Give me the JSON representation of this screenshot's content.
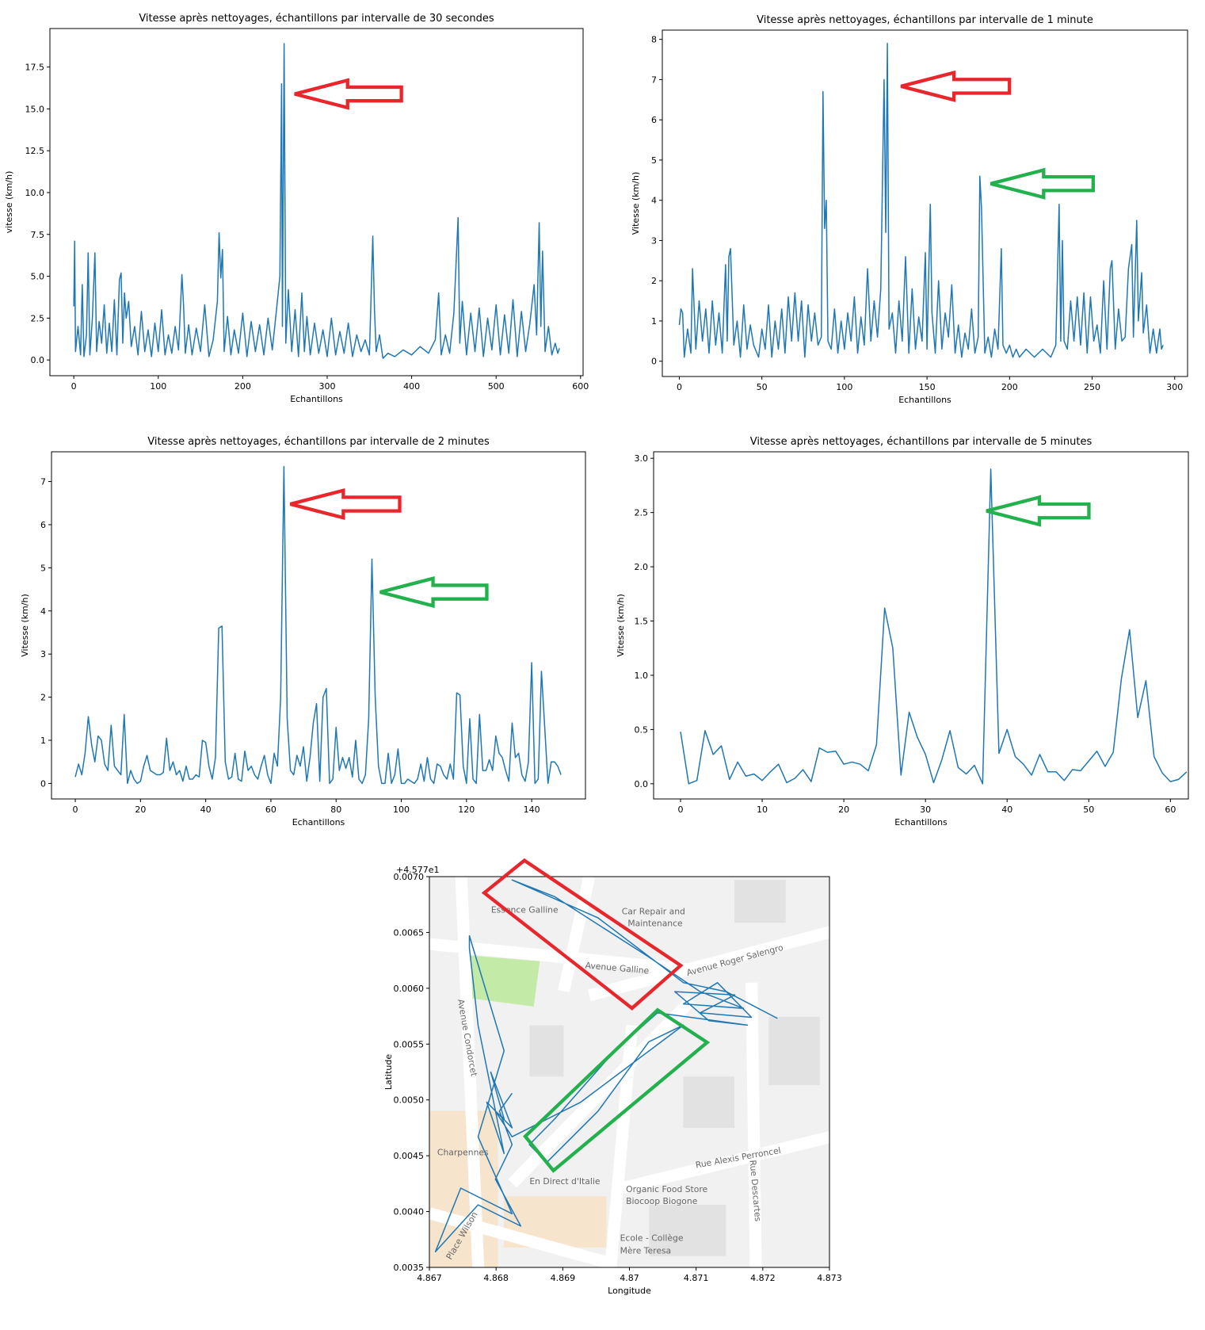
{
  "chart_data": [
    {
      "type": "line",
      "title": "Vitesse après nettoyages, échantillons par intervalle de 30 secondes",
      "xlabel": "Echantillons",
      "ylabel": "vitesse (km/h)",
      "color": "#1f77b4",
      "x": [
        0,
        1,
        2,
        5,
        8,
        10,
        12,
        15,
        17,
        19,
        22,
        25,
        27,
        30,
        33,
        36,
        39,
        42,
        45,
        48,
        51,
        54,
        56,
        58,
        60,
        62,
        65,
        68,
        72,
        76,
        80,
        84,
        88,
        92,
        96,
        100,
        104,
        108,
        112,
        116,
        120,
        124,
        128,
        130,
        132,
        136,
        140,
        145,
        150,
        155,
        160,
        165,
        170,
        172,
        174,
        176,
        178,
        182,
        186,
        190,
        195,
        200,
        205,
        210,
        215,
        220,
        225,
        230,
        235,
        240,
        244,
        246,
        247,
        249,
        251,
        254,
        258,
        262,
        266,
        270,
        273,
        276,
        280,
        285,
        290,
        295,
        300,
        305,
        310,
        315,
        320,
        325,
        330,
        335,
        340,
        345,
        350,
        354,
        356,
        358,
        362,
        366,
        372,
        380,
        390,
        400,
        410,
        420,
        428,
        432,
        435,
        440,
        445,
        450,
        455,
        457,
        460,
        465,
        470,
        475,
        480,
        485,
        490,
        495,
        500,
        505,
        510,
        515,
        520,
        525,
        530,
        535,
        540,
        545,
        548,
        551,
        553,
        555,
        558,
        562,
        566,
        570,
        573,
        575
      ],
      "values": [
        3.2,
        7.1,
        0.5,
        2,
        0.3,
        4.5,
        0.2,
        1.5,
        6.4,
        0.3,
        2.5,
        6.4,
        0.5,
        2.3,
        1,
        3.3,
        0.4,
        2.2,
        0.5,
        3.6,
        0.3,
        4.8,
        5.2,
        1,
        4,
        2.5,
        3.5,
        0.8,
        2,
        0.3,
        2.9,
        0.5,
        1.8,
        0.2,
        2.2,
        0.5,
        3,
        0.3,
        1.5,
        0.4,
        2,
        0.6,
        5.1,
        3.2,
        0.4,
        2.1,
        0.3,
        1.9,
        0.5,
        3.3,
        0.2,
        1.2,
        3.5,
        7.6,
        4.9,
        6.6,
        0.5,
        2.6,
        0.3,
        1.8,
        0.4,
        2.8,
        0.2,
        2.3,
        0.5,
        2.1,
        0.3,
        2.5,
        0.6,
        3,
        5,
        16.5,
        2,
        18.9,
        1,
        4.2,
        0.5,
        3,
        0.2,
        4,
        0.5,
        2.6,
        0.3,
        2.2,
        0.4,
        1.8,
        0.2,
        2.5,
        0.3,
        1.7,
        0.4,
        2.2,
        0.2,
        1.5,
        0.5,
        1.2,
        0.3,
        7.4,
        3,
        0.5,
        1.5,
        0.1,
        0.4,
        0.2,
        0.6,
        0.3,
        0.8,
        0.4,
        1.2,
        4,
        0.3,
        1.5,
        0.4,
        2.8,
        8.5,
        1,
        3.5,
        0.3,
        2.8,
        0.5,
        3.1,
        0.2,
        2.5,
        0.6,
        3.3,
        0.3,
        2.7,
        0.4,
        3.6,
        0.2,
        2.9,
        0.5,
        2.2,
        4.5,
        1.5,
        8.2,
        2,
        6.5,
        0.5,
        2,
        0.3,
        1,
        0.4,
        0.7
      ],
      "xlim": [
        -28.3,
        603
      ],
      "xticks": [
        0,
        100,
        200,
        300,
        400,
        500,
        600
      ],
      "ylim": [
        -0.94,
        19.8
      ],
      "yticks": [
        {
          "value": 0,
          "label": "0.0"
        },
        2.5,
        {
          "value": 5,
          "label": "5.0"
        },
        7.5,
        {
          "value": 10,
          "label": "10.0"
        },
        12.5,
        {
          "value": 15,
          "label": "15.0"
        },
        17.5
      ]
    },
    {
      "type": "line",
      "title": "Vitesse après nettoyages, échantillons par intervalle de 1 minute",
      "xlabel": "Echantillons",
      "ylabel": "Vitesse (km/h)",
      "color": "#1f77b4",
      "x": [
        0,
        1,
        2,
        3,
        5,
        7,
        8,
        10,
        12,
        14,
        16,
        18,
        20,
        22,
        24,
        26,
        28,
        29,
        30,
        31,
        33,
        35,
        37,
        39,
        41,
        43,
        45,
        48,
        50,
        52,
        54,
        56,
        58,
        60,
        62,
        64,
        66,
        68,
        70,
        72,
        74,
        76,
        78,
        80,
        82,
        84,
        86,
        87,
        88,
        89,
        90,
        92,
        94,
        96,
        98,
        100,
        102,
        104,
        106,
        108,
        110,
        112,
        114,
        116,
        118,
        120,
        122,
        124,
        125,
        126,
        127,
        129,
        131,
        133,
        135,
        137,
        139,
        141,
        143,
        145,
        147,
        149,
        150,
        152,
        153,
        155,
        157,
        159,
        161,
        163,
        165,
        167,
        169,
        171,
        173,
        175,
        177,
        179,
        181,
        182,
        183,
        185,
        187,
        189,
        191,
        193,
        195,
        196,
        198,
        200,
        202,
        204,
        206,
        210,
        215,
        220,
        225,
        228,
        230,
        231,
        232,
        233,
        235,
        237,
        239,
        241,
        243,
        245,
        247,
        249,
        251,
        253,
        255,
        257,
        259,
        261,
        262,
        264,
        266,
        268,
        270,
        272,
        274,
        275,
        277,
        278,
        280,
        281,
        283,
        285,
        287,
        289,
        291,
        292,
        293
      ],
      "values": [
        0.9,
        1.3,
        1.2,
        0.1,
        0.8,
        0.2,
        2.3,
        0.3,
        1.5,
        0.5,
        1.3,
        0.2,
        1.5,
        0.4,
        1.2,
        0.2,
        2.4,
        0.5,
        2.6,
        2.8,
        0.4,
        1,
        0.1,
        1.4,
        0.3,
        0.9,
        0.4,
        0.1,
        0.8,
        0.3,
        1.4,
        0.1,
        1,
        0.3,
        1.3,
        0.2,
        1.6,
        0.5,
        1.7,
        0.5,
        1.5,
        0.1,
        1.4,
        0.5,
        1.2,
        0.4,
        0.6,
        6.7,
        3.3,
        4,
        0.5,
        0.3,
        1.3,
        0.2,
        1,
        0.3,
        1.2,
        0.5,
        1.6,
        0.2,
        1.1,
        0.4,
        2.3,
        0.5,
        1.5,
        0.6,
        1.8,
        7,
        3.2,
        7.9,
        0.8,
        1.2,
        0.2,
        1.5,
        0.5,
        2.6,
        0.2,
        1.8,
        0.3,
        1.1,
        0.5,
        2.7,
        0.3,
        3.9,
        1.2,
        0.2,
        2,
        0.3,
        1.2,
        0.6,
        1.9,
        0.2,
        0.9,
        0.1,
        0.7,
        0.3,
        1.3,
        0.2,
        0.6,
        4.6,
        3.8,
        0.2,
        0.6,
        0.1,
        0.8,
        0.3,
        2.8,
        0.4,
        0.2,
        0.4,
        0.1,
        0.3,
        0.1,
        0.3,
        0.1,
        0.3,
        0.1,
        0.4,
        3.9,
        0.5,
        3,
        0.5,
        0.3,
        1.5,
        0.5,
        1.6,
        0.4,
        1.7,
        0.2,
        1.6,
        0.5,
        0.9,
        0.2,
        2,
        0.3,
        2.3,
        2.5,
        0.3,
        1.3,
        0.5,
        0.6,
        2.3,
        2.9,
        0.6,
        3.5,
        1,
        2.2,
        0.7,
        1.4,
        0.2,
        0.8,
        0.2,
        0.8,
        0.3,
        0.4
      ],
      "xlim": [
        -10.3,
        307.8
      ],
      "xticks": [
        0,
        50,
        100,
        150,
        200,
        250,
        300
      ],
      "ylim": [
        -0.38,
        8.23
      ],
      "yticks": [
        0,
        1,
        2,
        3,
        4,
        5,
        6,
        7,
        8
      ]
    },
    {
      "type": "line",
      "title": "Vitesse après nettoyages, échantillons par intervalle de 2 minutes",
      "xlabel": "Echantillons",
      "ylabel": "Vitesse (km/h)",
      "color": "#1f77b4",
      "x": [
        0,
        1,
        2,
        3,
        4,
        5,
        6,
        7,
        8,
        9,
        10,
        11,
        12,
        13,
        14,
        15,
        16,
        17,
        18,
        19,
        20,
        21,
        22,
        23,
        24,
        25,
        26,
        27,
        28,
        29,
        30,
        31,
        32,
        33,
        34,
        35,
        36,
        37,
        38,
        39,
        40,
        41,
        42,
        43,
        44,
        45,
        46,
        47,
        48,
        49,
        50,
        51,
        52,
        53,
        54,
        55,
        56,
        57,
        58,
        59,
        60,
        61,
        62,
        63,
        64,
        65,
        66,
        67,
        68,
        69,
        70,
        71,
        72,
        73,
        74,
        75,
        76,
        77,
        78,
        79,
        80,
        81,
        82,
        83,
        84,
        85,
        86,
        87,
        88,
        89,
        90,
        91,
        92,
        93,
        94,
        95,
        96,
        97,
        98,
        99,
        100,
        101,
        102,
        103,
        104,
        105,
        106,
        107,
        108,
        109,
        110,
        111,
        112,
        113,
        114,
        115,
        116,
        117,
        118,
        119,
        120,
        121,
        122,
        123,
        124,
        125,
        126,
        127,
        128,
        129,
        130,
        131,
        132,
        133,
        134,
        135,
        136,
        137,
        138,
        139,
        140,
        141,
        142,
        143,
        144,
        145,
        146,
        147,
        148,
        149
      ],
      "values": [
        0.15,
        0.45,
        0.2,
        0.7,
        1.55,
        0.9,
        0.5,
        1.1,
        1,
        0.45,
        0.3,
        1.35,
        0.4,
        0.3,
        0.2,
        1.6,
        0,
        0.3,
        0.1,
        0,
        0.05,
        0.4,
        0.65,
        0.3,
        0.25,
        0.2,
        0.2,
        0.25,
        1.05,
        0.3,
        0.5,
        0.2,
        0.3,
        0.05,
        0.4,
        0.1,
        0.1,
        0.2,
        0.15,
        1,
        0.95,
        0.4,
        0.1,
        0.6,
        3.6,
        3.65,
        0.5,
        0.1,
        0.15,
        0.7,
        0.1,
        0.05,
        0.75,
        0.3,
        0.4,
        0.2,
        0.1,
        0.4,
        0.65,
        0.2,
        0,
        0.7,
        0.4,
        2,
        7.35,
        1.5,
        0.3,
        0.2,
        0.65,
        0.4,
        0.85,
        0.05,
        0.6,
        1.4,
        1.85,
        0.05,
        2,
        2.2,
        0,
        0.1,
        1.3,
        0.3,
        0.6,
        0.35,
        0.6,
        0.15,
        1,
        0.1,
        0,
        0.2,
        1.5,
        5.2,
        2,
        0.4,
        0,
        0,
        0.7,
        0,
        0.2,
        0.8,
        0,
        0,
        0.1,
        0.05,
        0,
        0.1,
        0.45,
        0.05,
        0.6,
        0.1,
        0,
        0.45,
        0.4,
        0.2,
        0.1,
        0.45,
        0.1,
        2.1,
        2.05,
        0.4,
        0,
        1.5,
        0.1,
        0,
        1.6,
        0.3,
        0.3,
        0.55,
        0.3,
        1.1,
        0.7,
        0.6,
        0.3,
        0.05,
        1.4,
        0.6,
        0.7,
        0.2,
        0.05,
        0.5,
        2.8,
        0,
        0.1,
        2.6,
        1.3,
        0,
        0.5,
        0.5,
        0.4,
        0.2
      ],
      "xlim": [
        -7.3,
        156.5
      ],
      "xticks": [
        0,
        20,
        40,
        60,
        80,
        100,
        120,
        140
      ],
      "ylim": [
        -0.36,
        7.69
      ],
      "yticks": [
        0,
        1,
        2,
        3,
        4,
        5,
        6,
        7
      ]
    },
    {
      "type": "line",
      "title": "Vitesse après nettoyages, échantillons par intervalle de 5 minutes",
      "xlabel": "Echantillons",
      "ylabel": "Vitesse (km/h)",
      "color": "#1f77b4",
      "x": [
        0,
        1,
        2,
        3,
        4,
        5,
        6,
        7,
        8,
        9,
        10,
        11,
        12,
        13,
        14,
        15,
        16,
        17,
        18,
        19,
        20,
        21,
        22,
        23,
        24,
        25,
        26,
        27,
        28,
        29,
        30,
        31,
        32,
        33,
        34,
        35,
        36,
        37,
        38,
        39,
        40,
        41,
        42,
        43,
        44,
        45,
        46,
        47,
        48,
        49,
        50,
        51,
        52,
        53,
        54,
        55,
        56,
        57,
        58,
        59,
        60,
        61,
        62
      ],
      "values": [
        0.48,
        0,
        0.03,
        0.49,
        0.27,
        0.35,
        0.04,
        0.2,
        0.07,
        0.09,
        0.03,
        0.11,
        0.18,
        0.01,
        0.05,
        0.13,
        0.02,
        0.33,
        0.29,
        0.3,
        0.18,
        0.2,
        0.18,
        0.12,
        0.36,
        1.62,
        1.25,
        0.08,
        0.66,
        0.43,
        0.27,
        0.01,
        0.22,
        0.49,
        0.15,
        0.09,
        0.17,
        0,
        2.9,
        0.28,
        0.5,
        0.25,
        0.18,
        0.08,
        0.27,
        0.11,
        0.11,
        0.03,
        0.13,
        0.12,
        0.21,
        0.3,
        0.16,
        0.29,
        0.97,
        1.42,
        0.61,
        0.95,
        0.25,
        0.1,
        0.02,
        0.04,
        0.11
      ],
      "xlim": [
        -3.3,
        62.2
      ],
      "xticks": [
        0,
        10,
        20,
        30,
        40,
        50,
        60
      ],
      "ylim": [
        -0.14,
        3.06
      ],
      "yticks": [
        {
          "value": 0,
          "label": "0.0"
        },
        0.5,
        {
          "value": 1,
          "label": "1.0"
        },
        1.5,
        {
          "value": 2,
          "label": "2.0"
        },
        2.5,
        {
          "value": 3,
          "label": "3.0"
        }
      ]
    },
    {
      "type": "line",
      "xlabel": "Longitude",
      "ylabel": "Latitude",
      "offset_text": "+4.577e1",
      "color": "#1f77b4",
      "x": [
        4.87222,
        4.87145,
        4.87081,
        4.86953,
        4.86824,
        4.86888,
        4.87029,
        4.87106,
        4.87171,
        4.87081,
        4.87132,
        4.87183,
        4.87106,
        4.87158,
        4.87068,
        4.87119,
        4.87177,
        4.87042,
        4.86978,
        4.86888,
        4.8685,
        4.86876,
        4.86953,
        4.87029,
        4.87081,
        4.86927,
        4.86824,
        4.86799,
        4.86812,
        4.86792,
        4.86824,
        4.86786,
        4.86812,
        4.86773,
        4.8676,
        4.8676,
        4.86812,
        4.86773,
        4.86824,
        4.86747,
        4.86709,
        4.86773,
        4.86837,
        4.86799,
        4.86824,
        4.86805,
        4.86824
      ],
      "values": [
        0.00573,
        0.00597,
        0.00605,
        0.00663,
        0.00697,
        0.00682,
        0.00628,
        0.00597,
        0.00582,
        0.00586,
        0.00605,
        0.00574,
        0.00578,
        0.00594,
        0.00597,
        0.00571,
        0.00567,
        0.00578,
        0.00544,
        0.00483,
        0.0046,
        0.00444,
        0.0049,
        0.00552,
        0.00567,
        0.00498,
        0.00467,
        0.0049,
        0.00483,
        0.00525,
        0.00475,
        0.00498,
        0.00452,
        0.00567,
        0.00636,
        0.00647,
        0.00544,
        0.00467,
        0.00398,
        0.00421,
        0.00364,
        0.00406,
        0.00387,
        0.00429,
        0.0046,
        0.0049,
        0.00506
      ],
      "xlim": [
        4.867,
        4.873
      ],
      "xticks": [
        4.867,
        4.868,
        4.869,
        4.87,
        4.871,
        4.872,
        4.873
      ],
      "ylim": [
        0.0035,
        0.007
      ],
      "yticks": [
        {
          "value": 0.0035,
          "label": "0.0035"
        },
        {
          "value": 0.004,
          "label": "0.0040"
        },
        {
          "value": 0.0045,
          "label": "0.0045"
        },
        {
          "value": 0.005,
          "label": "0.0050"
        },
        {
          "value": 0.0055,
          "label": "0.0055"
        },
        {
          "value": 0.006,
          "label": "0.0060"
        },
        {
          "value": 0.0065,
          "label": "0.0065"
        },
        {
          "value": 0.007,
          "label": "0.0070"
        }
      ],
      "annotations": [
        "Essence Galline",
        "Car Repair and",
        "Maintenance",
        "Avenue Galline",
        "Avenue Roger Salengro",
        "Avenue Condorcet",
        "Rue Alexis Perroncel",
        "Organic Food Store",
        "Biocoop Biogone",
        "En Direct d'Italie",
        "Ecole - Collège",
        "Mère Teresa",
        "Charpennes",
        "Place Wilson",
        "Rue Descartes"
      ]
    }
  ]
}
